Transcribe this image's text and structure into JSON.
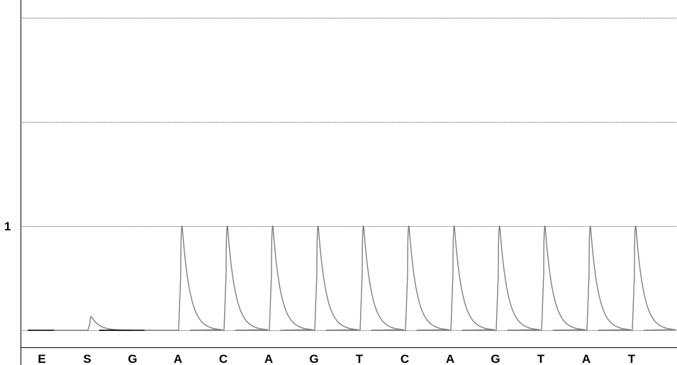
{
  "chart_data": {
    "type": "line",
    "title": "",
    "xlabel": "",
    "ylabel": "",
    "categories": [
      "E",
      "S",
      "G",
      "A",
      "C",
      "A",
      "G",
      "T",
      "C",
      "A",
      "G",
      "T",
      "A",
      "T"
    ],
    "y_tick_labels": [
      {
        "value": 1,
        "label": "1"
      }
    ],
    "gridlines_y": [
      0,
      1,
      2,
      3
    ],
    "ylim": [
      -0.17,
      3.2
    ],
    "grid": true,
    "peaks": [
      {
        "category": "E",
        "height": 0
      },
      {
        "category": "S",
        "height": 0.13
      },
      {
        "category": "G",
        "height": 0
      },
      {
        "category": "A",
        "height": 1.0
      },
      {
        "category": "C",
        "height": 1.0
      },
      {
        "category": "A",
        "height": 1.0
      },
      {
        "category": "G",
        "height": 1.0
      },
      {
        "category": "T",
        "height": 1.0
      },
      {
        "category": "C",
        "height": 1.0
      },
      {
        "category": "A",
        "height": 1.0
      },
      {
        "category": "G",
        "height": 1.0
      },
      {
        "category": "T",
        "height": 1.0
      },
      {
        "category": "A",
        "height": 1.0
      },
      {
        "category": "T",
        "height": 1.0
      }
    ],
    "colors": {
      "trace": "#808080",
      "baseline": "#000000",
      "grid": "#555555",
      "axis": "#000000"
    }
  }
}
